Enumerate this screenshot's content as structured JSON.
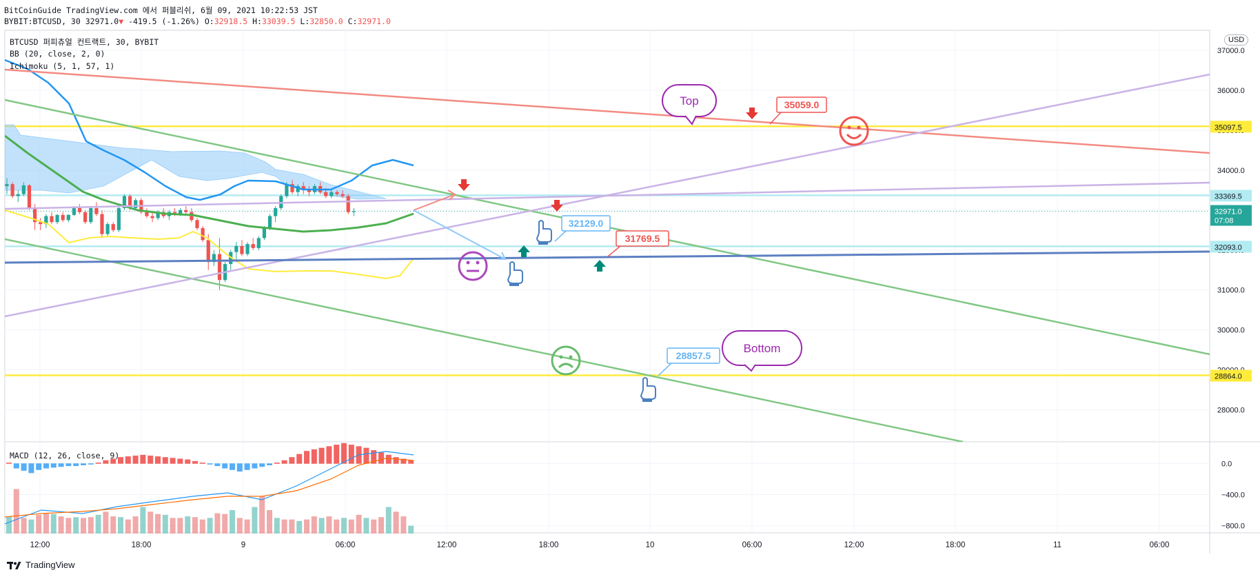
{
  "header": {
    "line1": "BitCoinGuide TradingView.com 에서 퍼블리쉬, 6월 09, 2021 10:22:53 JST",
    "line2": {
      "symbol": "BYBIT:BTCUSD, 30",
      "price": "32971.0",
      "change": "-419.5 (-1.26%)",
      "open": "32918.5",
      "high": "33039.5",
      "low": "32850.0",
      "close": "32971.0"
    }
  },
  "legend": {
    "symbol": "BTCUSD 퍼피츄얼 컨트랙트, 30, BYBIT",
    "bb": "BB (20, close, 2, 0)",
    "ichimoku": "Ichimoku (5, 1, 57, 1)",
    "macd": "MACD (12, 26, close, 9)"
  },
  "currency": "USD",
  "footer": "TradingView",
  "colors": {
    "up": "#26a69a",
    "down": "#ef5350",
    "bb_upper": "#2196f3",
    "bb_basis": "#4caf50",
    "bb_lower": "#ffeb3b",
    "cloud": "#90caf9",
    "trend_green": "#81c784",
    "trend_red": "#f28b82",
    "trend_purple": "#c9b3e6",
    "trend_blue": "#5b7fc2",
    "hline_yellow": "#ffeb3b",
    "hline_cyan": "#b2ebf2"
  },
  "chart_data": {
    "type": "candlestick",
    "y_axis": {
      "ticks": [
        28000,
        29000,
        30000,
        31000,
        32000,
        33000,
        34000,
        35000,
        36000,
        37000
      ],
      "tick_labels": [
        "28000.0",
        "29000.0",
        "30000.0",
        "31000.0",
        "32000.0",
        "33000.0",
        "34000.0",
        "35000.0",
        "36000.0",
        "37000.0"
      ],
      "range": [
        27200,
        37500
      ]
    },
    "x_axis": {
      "labels": [
        "12:00",
        "18:00",
        "9",
        "06:00",
        "12:00",
        "18:00",
        "10",
        "06:00",
        "12:00",
        "18:00",
        "11",
        "06:00"
      ]
    },
    "price_labels": [
      {
        "value": 35097.5,
        "label": "35097.5",
        "kind": "yellow"
      },
      {
        "value": 33369.5,
        "label": "33369.5",
        "kind": "cyan"
      },
      {
        "value": 32971.0,
        "label": "32971.0",
        "sub": "07:08",
        "kind": "current"
      },
      {
        "value": 32093.0,
        "label": "32093.0",
        "kind": "cyan"
      },
      {
        "value": 28864.0,
        "label": "28864.0",
        "kind": "yellow"
      }
    ],
    "macd": {
      "ticks": [
        0,
        -400,
        -800
      ],
      "tick_labels": [
        "0.0",
        "−400.0",
        "−800.0"
      ],
      "range": [
        -900,
        250
      ]
    },
    "annotations": {
      "callouts": [
        {
          "text": "Top",
          "color": "#9c27b0"
        },
        {
          "text": "Bottom",
          "color": "#9c27b0"
        }
      ],
      "price_notes": [
        {
          "text": "35059.0",
          "color": "#ef5350"
        },
        {
          "text": "31769.5",
          "color": "#ef5350"
        },
        {
          "text": "32129.0",
          "color": "#64b5f6"
        },
        {
          "text": "28857.5",
          "color": "#64b5f6"
        }
      ]
    }
  }
}
